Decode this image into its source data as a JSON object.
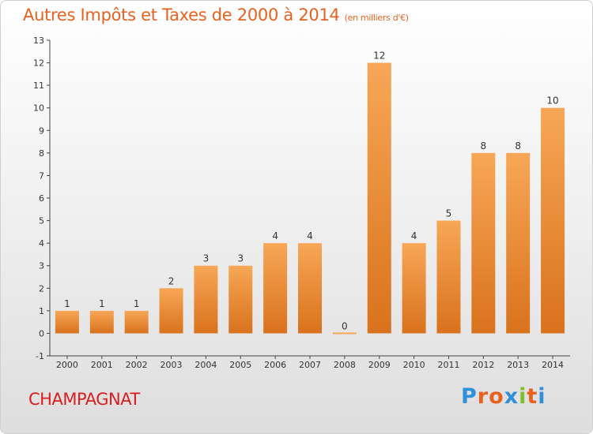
{
  "header": {
    "title": "Autres Impôts et Taxes de 2000 à 2014",
    "unit": "(en milliers d'€)"
  },
  "footer": {
    "commune": "CHAMPAGNAT",
    "logo": "Proxiti"
  },
  "colors": {
    "title": "#e8611f",
    "commune": "#d81e1e",
    "bar_light": "#f7a757",
    "bar_dark": "#d9721c",
    "logo_letters": [
      "#2f8fd8",
      "#e8611f",
      "#e8611f",
      "#2f8fd8",
      "#7bbf2a",
      "#e8611f",
      "#2f8fd8"
    ]
  },
  "chart_data": {
    "type": "bar",
    "title": "Autres Impôts et Taxes de 2000 à 2014",
    "subtitle": "(en milliers d'€)",
    "categories": [
      "2000",
      "2001",
      "2002",
      "2003",
      "2004",
      "2005",
      "2006",
      "2007",
      "2008",
      "2009",
      "2010",
      "2011",
      "2012",
      "2013",
      "2014"
    ],
    "values": [
      1,
      1,
      1,
      2,
      3,
      3,
      4,
      4,
      0,
      12,
      4,
      5,
      8,
      8,
      10
    ],
    "xlabel": "",
    "ylabel": "",
    "ylim": [
      -1,
      13
    ],
    "yticks": [
      -1,
      0,
      1,
      2,
      3,
      4,
      5,
      6,
      7,
      8,
      9,
      10,
      11,
      12,
      13
    ],
    "grid": false,
    "legend": "none"
  }
}
